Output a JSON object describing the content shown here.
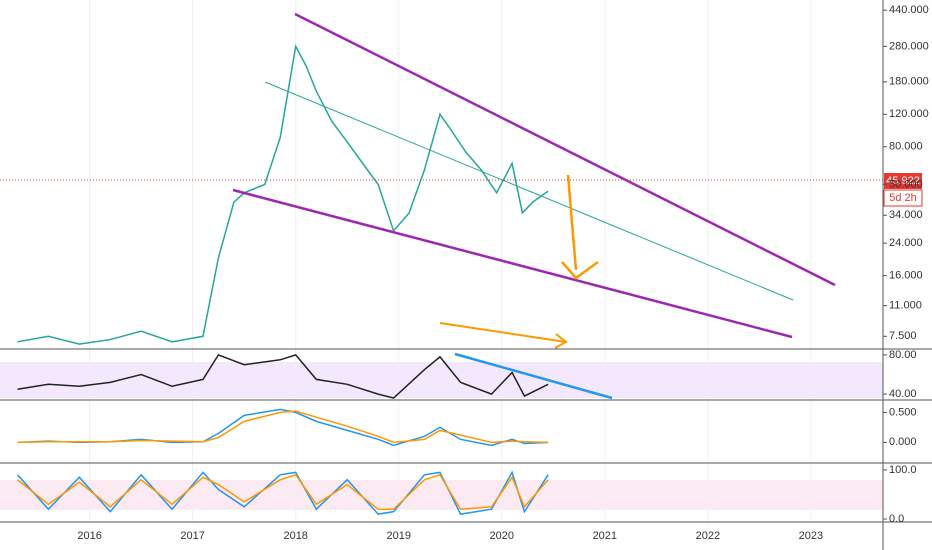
{
  "chart_data": [
    {
      "type": "line",
      "log_scale": true,
      "countdown": "5d 2h",
      "x": [
        2015.3,
        2015.6,
        2015.9,
        2016.2,
        2016.5,
        2016.8,
        2017.1,
        2017.25,
        2017.4,
        2017.5,
        2017.7,
        2017.85,
        2018.0,
        2018.1,
        2018.2,
        2018.35,
        2018.5,
        2018.65,
        2018.8,
        2018.95,
        2019.1,
        2019.25,
        2019.4,
        2019.5,
        2019.65,
        2019.8,
        2019.95,
        2020.1,
        2020.2,
        2020.3,
        2020.4,
        2020.45
      ],
      "series": [
        {
          "color": "#26a69a",
          "values": [
            7,
            7.5,
            6.8,
            7.2,
            8,
            7,
            7.5,
            20,
            40,
            45,
            50,
            90,
            280,
            220,
            160,
            110,
            85,
            65,
            50,
            28,
            35,
            60,
            120,
            100,
            75,
            60,
            45,
            65,
            35,
            40,
            44,
            45.922
          ]
        }
      ],
      "xlim": [
        2015.13,
        2023.7
      ],
      "xticks": [
        2016,
        2017,
        2018,
        2019,
        2020,
        2021,
        2022,
        2023
      ],
      "ylim": [
        6.4,
        500
      ],
      "yticks": [
        {
          "value": 7.5,
          "label": "7.500"
        },
        {
          "value": 11,
          "label": "11.000"
        },
        {
          "value": 16,
          "label": "16.000"
        },
        {
          "value": 24,
          "label": "24.000"
        },
        {
          "value": 34,
          "label": "34.000"
        },
        {
          "value": 50,
          "label": "50.000"
        },
        {
          "value": 80,
          "label": "80.000"
        },
        {
          "value": 120,
          "label": "120.000"
        },
        {
          "value": 180,
          "label": "180.000"
        },
        {
          "value": 280,
          "label": "280.000"
        },
        {
          "value": 440,
          "label": "440.000"
        }
      ]
    },
    {
      "type": "line",
      "x": [
        2015.3,
        2015.6,
        2015.9,
        2016.2,
        2016.5,
        2016.8,
        2017.1,
        2017.25,
        2017.5,
        2017.85,
        2018.0,
        2018.2,
        2018.5,
        2018.8,
        2018.95,
        2019.25,
        2019.4,
        2019.6,
        2019.9,
        2020.1,
        2020.22,
        2020.45
      ],
      "series": [
        {
          "color": "#222222",
          "values": [
            45,
            50,
            48,
            52,
            60,
            48,
            55,
            80,
            70,
            75,
            80,
            55,
            50,
            40,
            36,
            65,
            78,
            52,
            40,
            62,
            38,
            50
          ]
        }
      ],
      "ylim": [
        34,
        85
      ],
      "yticks": [
        {
          "value": 40,
          "label": "40.00"
        },
        {
          "value": 80,
          "label": "80.00"
        }
      ]
    },
    {
      "type": "line",
      "x": [
        2015.3,
        2015.6,
        2015.9,
        2016.2,
        2016.5,
        2016.8,
        2017.1,
        2017.25,
        2017.5,
        2017.85,
        2018.0,
        2018.2,
        2018.5,
        2018.8,
        2018.95,
        2019.25,
        2019.4,
        2019.6,
        2019.9,
        2020.1,
        2020.22,
        2020.45
      ],
      "series": [
        {
          "color": "#2196f3",
          "values": [
            0,
            0.02,
            0,
            0.01,
            0.05,
            0,
            0.01,
            0.15,
            0.45,
            0.55,
            0.5,
            0.35,
            0.2,
            0.05,
            -0.05,
            0.1,
            0.25,
            0.05,
            -0.05,
            0.05,
            -0.02,
            0
          ]
        },
        {
          "color": "#ff9800",
          "values": [
            0,
            0.01,
            0.01,
            0.01,
            0.03,
            0.02,
            0.01,
            0.08,
            0.35,
            0.5,
            0.52,
            0.42,
            0.27,
            0.1,
            0,
            0.05,
            0.2,
            0.12,
            0,
            0.02,
            0.01,
            0
          ]
        }
      ],
      "ylim": [
        -0.345,
        0.69
      ],
      "yticks": [
        {
          "value": 0,
          "label": "0.000"
        },
        {
          "value": 0.5,
          "label": "0.500"
        }
      ]
    },
    {
      "type": "line",
      "x": [
        2015.3,
        2015.6,
        2015.9,
        2016.2,
        2016.5,
        2016.8,
        2017.1,
        2017.25,
        2017.5,
        2017.85,
        2018.0,
        2018.2,
        2018.5,
        2018.8,
        2018.95,
        2019.25,
        2019.4,
        2019.6,
        2019.9,
        2020.1,
        2020.22,
        2020.45
      ],
      "series": [
        {
          "color": "#2196f3",
          "values": [
            90,
            20,
            85,
            15,
            90,
            20,
            95,
            60,
            25,
            90,
            95,
            20,
            80,
            10,
            15,
            90,
            95,
            10,
            20,
            95,
            15,
            90
          ]
        },
        {
          "color": "#ff9800",
          "values": [
            80,
            30,
            75,
            25,
            80,
            30,
            85,
            70,
            35,
            80,
            90,
            30,
            70,
            20,
            20,
            80,
            90,
            20,
            25,
            85,
            25,
            80
          ]
        }
      ],
      "ylim": [
        -6,
        112
      ],
      "yticks": [
        {
          "value": 0,
          "label": "0.0"
        },
        {
          "value": 100,
          "label": "100.0"
        }
      ]
    }
  ]
}
